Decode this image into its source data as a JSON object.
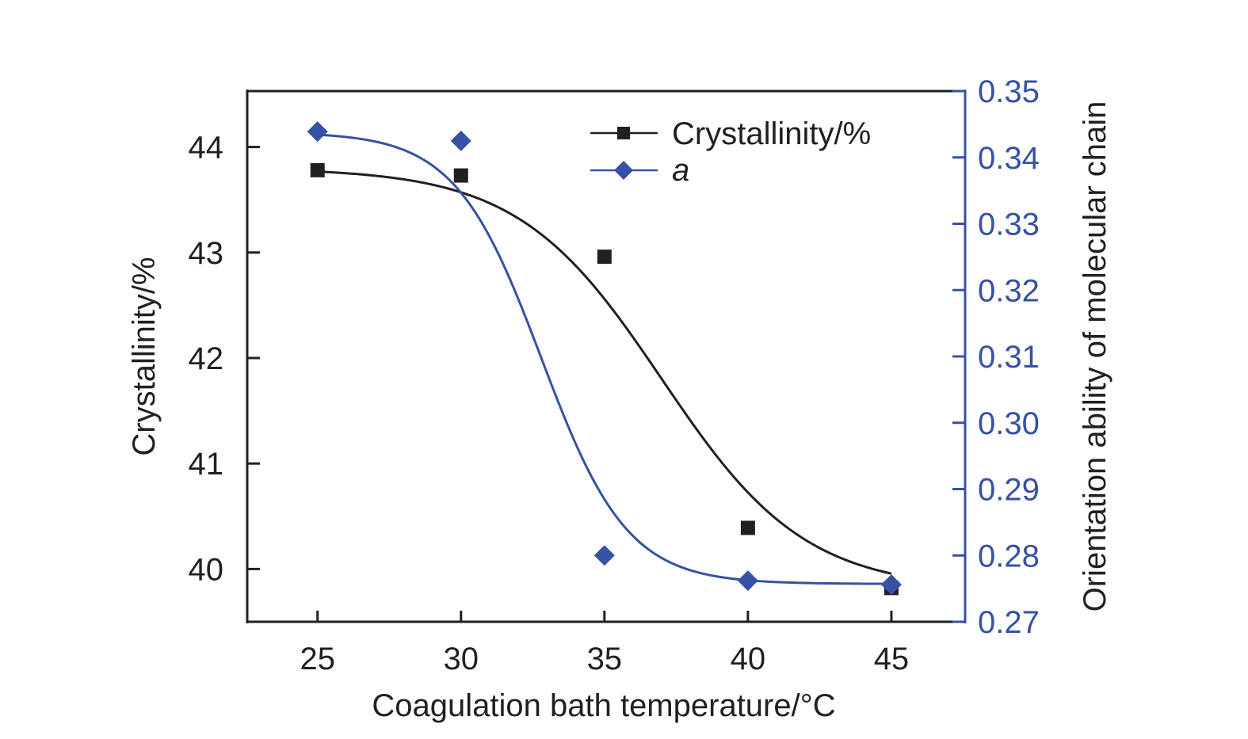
{
  "chart_data": {
    "type": "scatter",
    "title": "",
    "xlabel": "Coagulation bath temperature/°C",
    "ylabel_left": "Crystallinity/%",
    "ylabel_right": "Orientation ability of molecular chain",
    "xlim": [
      22.55,
      47.57
    ],
    "ylim_left": [
      39.5,
      44.53
    ],
    "ylim_right": [
      0.27,
      0.35
    ],
    "x_ticks": [
      25,
      30,
      35,
      40,
      45
    ],
    "x_tick_labels": [
      "25",
      "30",
      "35",
      "40",
      "45"
    ],
    "y_left_ticks": [
      40,
      41,
      42,
      43,
      44
    ],
    "y_left_tick_labels": [
      "40",
      "41",
      "42",
      "43",
      "44"
    ],
    "y_right_ticks": [
      0.27,
      0.28,
      0.29,
      0.3,
      0.31,
      0.32,
      0.33,
      0.34,
      0.35
    ],
    "y_right_tick_labels": [
      "0.27",
      "0.28",
      "0.29",
      "0.30",
      "0.31",
      "0.32",
      "0.33",
      "0.34",
      "0.35"
    ],
    "grid": false,
    "legend_position": "top-right",
    "x": [
      25,
      30,
      35,
      40,
      45
    ],
    "series": [
      {
        "name": "Crystallinity/%",
        "legend_label": "Crystallinity/%",
        "axis": "left",
        "marker": "square",
        "color": "#231f20",
        "values": [
          43.78,
          43.73,
          42.96,
          40.39,
          39.82
        ],
        "fit": {
          "model": "boltzmann",
          "A1": 43.8,
          "A2": 39.8,
          "x0": 37.0,
          "dx": 2.5
        }
      },
      {
        "name": "a",
        "legend_label": "a",
        "axis": "right",
        "marker": "diamond",
        "color": "#3651a5",
        "values": [
          0.3439,
          0.3425,
          0.28,
          0.2762,
          0.2756
        ],
        "fit": {
          "model": "boltzmann",
          "A1": 0.3438,
          "A2": 0.2757,
          "x0": 32.8,
          "dx": 1.5
        }
      }
    ]
  }
}
